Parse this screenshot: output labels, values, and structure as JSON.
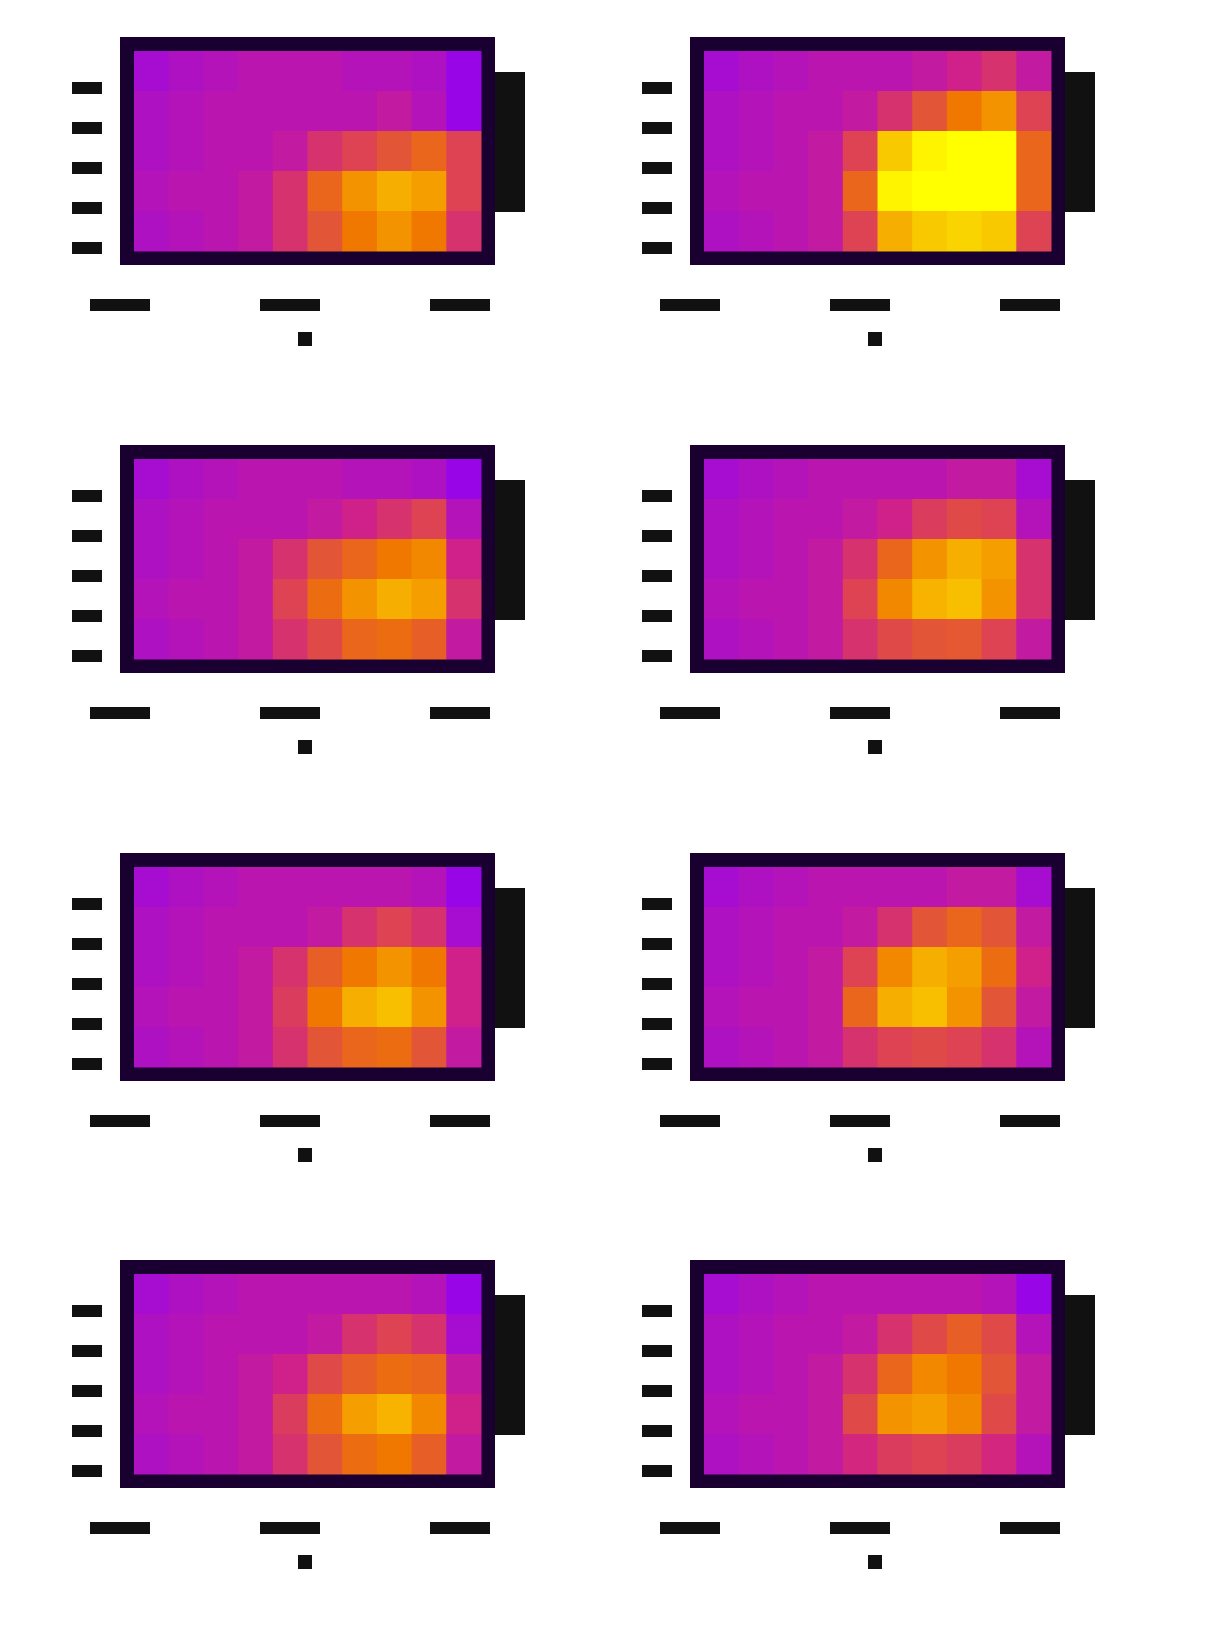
{
  "chart_data": [
    {
      "type": "heatmap",
      "clim": [
        0,
        1
      ],
      "colormap": [
        "#1a0030",
        "#8a00ff",
        "#d0208a",
        "#f07800",
        "#ffff00"
      ],
      "values": [
        [
          0.35,
          0.38,
          0.4,
          0.42,
          0.42,
          0.42,
          0.4,
          0.4,
          0.38,
          0.3
        ],
        [
          0.38,
          0.4,
          0.42,
          0.42,
          0.42,
          0.42,
          0.42,
          0.45,
          0.4,
          0.3
        ],
        [
          0.38,
          0.4,
          0.42,
          0.42,
          0.45,
          0.55,
          0.6,
          0.65,
          0.7,
          0.6
        ],
        [
          0.4,
          0.42,
          0.42,
          0.45,
          0.55,
          0.7,
          0.8,
          0.85,
          0.82,
          0.6
        ],
        [
          0.38,
          0.4,
          0.42,
          0.45,
          0.55,
          0.65,
          0.75,
          0.8,
          0.75,
          0.55
        ]
      ]
    },
    {
      "type": "heatmap",
      "clim": [
        0,
        1
      ],
      "colormap": [
        "#1a0030",
        "#8a00ff",
        "#d0208a",
        "#f07800",
        "#ffff00"
      ],
      "values": [
        [
          0.35,
          0.38,
          0.4,
          0.42,
          0.42,
          0.42,
          0.45,
          0.5,
          0.55,
          0.45
        ],
        [
          0.38,
          0.4,
          0.42,
          0.42,
          0.45,
          0.55,
          0.65,
          0.75,
          0.8,
          0.6
        ],
        [
          0.38,
          0.4,
          0.42,
          0.45,
          0.6,
          0.9,
          0.98,
          1.0,
          1.0,
          0.7
        ],
        [
          0.4,
          0.42,
          0.42,
          0.45,
          0.7,
          0.98,
          1.0,
          1.0,
          1.0,
          0.7
        ],
        [
          0.38,
          0.4,
          0.42,
          0.45,
          0.6,
          0.85,
          0.9,
          0.92,
          0.9,
          0.6
        ]
      ]
    },
    {
      "type": "heatmap",
      "clim": [
        0,
        1
      ],
      "colormap": [
        "#1a0030",
        "#8a00ff",
        "#d0208a",
        "#f07800",
        "#ffff00"
      ],
      "values": [
        [
          0.35,
          0.38,
          0.4,
          0.42,
          0.42,
          0.42,
          0.4,
          0.4,
          0.38,
          0.3
        ],
        [
          0.38,
          0.4,
          0.42,
          0.42,
          0.42,
          0.45,
          0.5,
          0.55,
          0.6,
          0.4
        ],
        [
          0.38,
          0.4,
          0.42,
          0.45,
          0.55,
          0.65,
          0.7,
          0.75,
          0.78,
          0.5
        ],
        [
          0.4,
          0.42,
          0.42,
          0.45,
          0.6,
          0.72,
          0.8,
          0.85,
          0.82,
          0.55
        ],
        [
          0.38,
          0.4,
          0.42,
          0.45,
          0.55,
          0.62,
          0.7,
          0.72,
          0.68,
          0.45
        ]
      ]
    },
    {
      "type": "heatmap",
      "clim": [
        0,
        1
      ],
      "colormap": [
        "#1a0030",
        "#8a00ff",
        "#d0208a",
        "#f07800",
        "#ffff00"
      ],
      "values": [
        [
          0.35,
          0.38,
          0.4,
          0.42,
          0.42,
          0.42,
          0.42,
          0.45,
          0.45,
          0.35
        ],
        [
          0.38,
          0.4,
          0.42,
          0.42,
          0.45,
          0.5,
          0.58,
          0.62,
          0.6,
          0.4
        ],
        [
          0.38,
          0.4,
          0.42,
          0.45,
          0.55,
          0.7,
          0.8,
          0.85,
          0.82,
          0.55
        ],
        [
          0.4,
          0.42,
          0.42,
          0.45,
          0.6,
          0.78,
          0.86,
          0.88,
          0.8,
          0.55
        ],
        [
          0.38,
          0.4,
          0.42,
          0.45,
          0.55,
          0.62,
          0.65,
          0.66,
          0.6,
          0.45
        ]
      ]
    },
    {
      "type": "heatmap",
      "clim": [
        0,
        1
      ],
      "colormap": [
        "#1a0030",
        "#8a00ff",
        "#d0208a",
        "#f07800",
        "#ffff00"
      ],
      "values": [
        [
          0.35,
          0.38,
          0.4,
          0.42,
          0.42,
          0.42,
          0.42,
          0.42,
          0.4,
          0.3
        ],
        [
          0.38,
          0.4,
          0.42,
          0.42,
          0.42,
          0.45,
          0.55,
          0.6,
          0.55,
          0.35
        ],
        [
          0.38,
          0.4,
          0.42,
          0.45,
          0.55,
          0.68,
          0.75,
          0.8,
          0.75,
          0.5
        ],
        [
          0.4,
          0.42,
          0.42,
          0.45,
          0.58,
          0.75,
          0.85,
          0.88,
          0.8,
          0.5
        ],
        [
          0.38,
          0.4,
          0.42,
          0.45,
          0.55,
          0.65,
          0.7,
          0.72,
          0.65,
          0.45
        ]
      ]
    },
    {
      "type": "heatmap",
      "clim": [
        0,
        1
      ],
      "colormap": [
        "#1a0030",
        "#8a00ff",
        "#d0208a",
        "#f07800",
        "#ffff00"
      ],
      "values": [
        [
          0.35,
          0.38,
          0.4,
          0.42,
          0.42,
          0.42,
          0.42,
          0.45,
          0.45,
          0.35
        ],
        [
          0.38,
          0.4,
          0.42,
          0.42,
          0.45,
          0.55,
          0.65,
          0.7,
          0.65,
          0.45
        ],
        [
          0.38,
          0.4,
          0.42,
          0.45,
          0.6,
          0.78,
          0.85,
          0.82,
          0.72,
          0.5
        ],
        [
          0.4,
          0.42,
          0.42,
          0.45,
          0.7,
          0.85,
          0.88,
          0.8,
          0.65,
          0.45
        ],
        [
          0.38,
          0.4,
          0.42,
          0.45,
          0.55,
          0.6,
          0.62,
          0.6,
          0.55,
          0.4
        ]
      ]
    },
    {
      "type": "heatmap",
      "clim": [
        0,
        1
      ],
      "colormap": [
        "#1a0030",
        "#8a00ff",
        "#d0208a",
        "#f07800",
        "#ffff00"
      ],
      "values": [
        [
          0.35,
          0.38,
          0.4,
          0.42,
          0.42,
          0.42,
          0.42,
          0.42,
          0.4,
          0.3
        ],
        [
          0.38,
          0.4,
          0.42,
          0.42,
          0.42,
          0.45,
          0.55,
          0.6,
          0.55,
          0.35
        ],
        [
          0.38,
          0.4,
          0.42,
          0.45,
          0.5,
          0.62,
          0.68,
          0.72,
          0.7,
          0.45
        ],
        [
          0.4,
          0.42,
          0.42,
          0.45,
          0.58,
          0.72,
          0.82,
          0.86,
          0.78,
          0.5
        ],
        [
          0.38,
          0.4,
          0.42,
          0.45,
          0.55,
          0.65,
          0.72,
          0.75,
          0.68,
          0.45
        ]
      ]
    },
    {
      "type": "heatmap",
      "clim": [
        0,
        1
      ],
      "colormap": [
        "#1a0030",
        "#8a00ff",
        "#d0208a",
        "#f07800",
        "#ffff00"
      ],
      "values": [
        [
          0.35,
          0.38,
          0.4,
          0.42,
          0.42,
          0.42,
          0.42,
          0.42,
          0.4,
          0.3
        ],
        [
          0.38,
          0.4,
          0.42,
          0.42,
          0.45,
          0.55,
          0.62,
          0.68,
          0.62,
          0.4
        ],
        [
          0.38,
          0.4,
          0.42,
          0.45,
          0.55,
          0.7,
          0.78,
          0.75,
          0.65,
          0.45
        ],
        [
          0.4,
          0.42,
          0.42,
          0.45,
          0.62,
          0.8,
          0.82,
          0.78,
          0.62,
          0.45
        ],
        [
          0.38,
          0.4,
          0.42,
          0.45,
          0.52,
          0.58,
          0.6,
          0.58,
          0.52,
          0.4
        ]
      ]
    }
  ]
}
